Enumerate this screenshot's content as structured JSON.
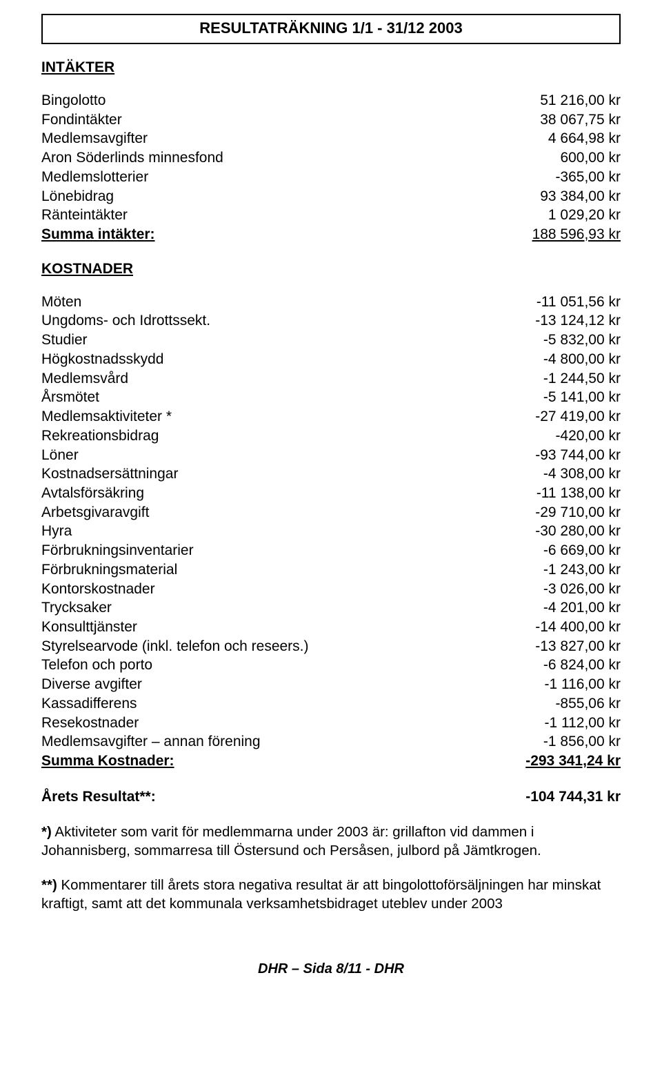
{
  "title": "RESULTATRÄKNING 1/1 - 31/12 2003",
  "intakter": {
    "heading": "INTÄKTER",
    "rows": [
      {
        "label": "Bingolotto",
        "value": "51 216,00 kr"
      },
      {
        "label": "Fondintäkter",
        "value": "38 067,75 kr"
      },
      {
        "label": "Medlemsavgifter",
        "value": "4 664,98 kr"
      },
      {
        "label": "Aron Söderlinds minnesfond",
        "value": "600,00 kr"
      },
      {
        "label": "Medlemslotterier",
        "value": "-365,00 kr"
      },
      {
        "label": "Lönebidrag",
        "value": "93 384,00 kr"
      },
      {
        "label": "Ränteintäkter",
        "value": "1 029,20 kr"
      }
    ],
    "sum_label": "Summa intäkter:",
    "sum_value": "188 596,93 kr"
  },
  "kostnader": {
    "heading": "KOSTNADER",
    "rows": [
      {
        "label": "Möten",
        "value": "-11 051,56 kr"
      },
      {
        "label": "Ungdoms- och Idrottssekt.",
        "value": "-13 124,12 kr"
      },
      {
        "label": "Studier",
        "value": "-5 832,00 kr"
      },
      {
        "label": "Högkostnadsskydd",
        "value": "-4 800,00 kr"
      },
      {
        "label": "Medlemsvård",
        "value": "-1 244,50 kr"
      },
      {
        "label": "Årsmötet",
        "value": "-5 141,00 kr"
      },
      {
        "label": "Medlemsaktiviteter *",
        "value": "-27 419,00 kr"
      },
      {
        "label": "Rekreationsbidrag",
        "value": "-420,00 kr"
      },
      {
        "label": "Löner",
        "value": "-93 744,00 kr"
      },
      {
        "label": "Kostnadsersättningar",
        "value": "-4 308,00 kr"
      },
      {
        "label": "Avtalsförsäkring",
        "value": "-11 138,00 kr"
      },
      {
        "label": "Arbetsgivaravgift",
        "value": "-29 710,00 kr"
      },
      {
        "label": "Hyra",
        "value": "-30 280,00 kr"
      },
      {
        "label": "Förbrukningsinventarier",
        "value": "-6 669,00 kr"
      },
      {
        "label": "Förbrukningsmaterial",
        "value": "-1 243,00 kr"
      },
      {
        "label": "Kontorskostnader",
        "value": "-3 026,00 kr"
      },
      {
        "label": "Trycksaker",
        "value": "-4 201,00 kr"
      },
      {
        "label": "Konsulttjänster",
        "value": "-14 400,00 kr"
      },
      {
        "label": "Styrelsearvode (inkl. telefon och reseers.)",
        "value": "-13 827,00 kr"
      },
      {
        "label": "Telefon och porto",
        "value": "-6 824,00 kr"
      },
      {
        "label": "Diverse avgifter",
        "value": "-1 116,00 kr"
      },
      {
        "label": "Kassadifferens",
        "value": "-855,06 kr"
      },
      {
        "label": "Resekostnader",
        "value": "-1 112,00 kr"
      },
      {
        "label": "Medlemsavgifter – annan förening",
        "value": "-1 856,00 kr"
      }
    ],
    "sum_label": "Summa Kostnader:",
    "sum_value": "-293 341,24 kr"
  },
  "result": {
    "label": "Årets Resultat**:",
    "value": "-104 744,31 kr"
  },
  "notes": {
    "p1": "*) Aktiviteter som varit för medlemmarna under 2003 är: grillafton vid dammen i Johannisberg, sommarresa till Östersund och Persåsen, julbord på Jämtkrogen.",
    "p2": "**) Kommentarer till årets stora negativa resultat är att bingolottoförsäljningen har minskat kraftigt, samt att det kommunala verksamhetsbidraget uteblev under 2003"
  },
  "footer": "DHR – Sida 8/11 - DHR"
}
